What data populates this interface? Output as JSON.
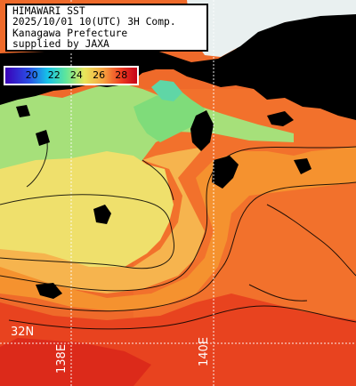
{
  "header": {
    "line1": "HIMAWARI SST",
    "line2": "2025/10/01 10(UTC) 3H Comp.",
    "line3": "Kanagawa Prefecture",
    "line4": "supplied by JAXA"
  },
  "legend": {
    "ticks": [
      "20",
      "22",
      "24",
      "26",
      "28"
    ]
  },
  "grid_labels": {
    "lat_32": "32N",
    "lon_138": "138E",
    "lon_140": "140E"
  },
  "colors": {
    "land": "#000000",
    "sst_20": "#3a00b8",
    "sst_22": "#16c2e8",
    "sst_24": "#e9e65b",
    "sst_26": "#f8a640",
    "sst_28": "#ee3b20",
    "gridline": "#ffffff"
  }
}
